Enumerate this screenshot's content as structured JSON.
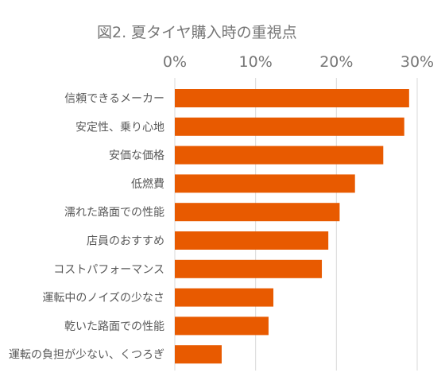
{
  "chart_data": {
    "type": "bar",
    "orientation": "horizontal",
    "title": "図2. 夏タイヤ購入時の重視点",
    "xlabel": "",
    "ylabel": "",
    "xlim": [
      0,
      0.3
    ],
    "x_ticks": [
      {
        "value": 0,
        "label": "0%"
      },
      {
        "value": 0.1,
        "label": "10%"
      },
      {
        "value": 0.2,
        "label": "20%"
      },
      {
        "value": 0.3,
        "label": "30%"
      }
    ],
    "x_axis_position": "top",
    "grid": true,
    "legend": "none",
    "bar_color": "#e85a00",
    "gridline_color": "#d9d9d9",
    "categories": [
      "信頼できるメーカー",
      "安定性、乗り心地",
      "安価な価格",
      "低燃費",
      "濡れた路面での性能",
      "店員のおすすめ",
      "コストパフォーマンス",
      "運転中のノイズの少なさ",
      "乾いた路面での性能",
      "運転の負担が少ない、くつろぎ"
    ],
    "values": [
      0.29,
      0.284,
      0.258,
      0.223,
      0.204,
      0.19,
      0.182,
      0.122,
      0.116,
      0.058
    ]
  }
}
